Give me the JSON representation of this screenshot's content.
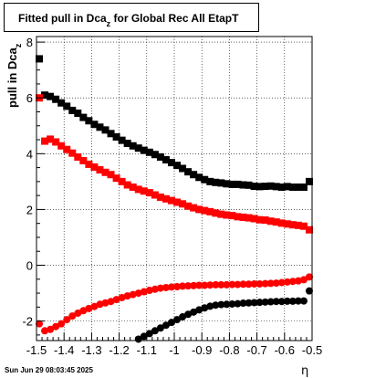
{
  "chart_data": {
    "type": "scatter",
    "title_pre": "Fitted pull in Dca",
    "title_sub": "z",
    "title_post": " for Global Rec All EtapT",
    "ylabel_pre": "pull in Dca",
    "ylabel_sub": "z",
    "xlabel": "η",
    "xlim": [
      -1.5,
      -0.5
    ],
    "ylim": [
      -2.7,
      8.2
    ],
    "grid": true,
    "x_ticks": [
      "-1.5",
      "-1.4",
      "-1.3",
      "-1.2",
      "-1.1",
      "-1",
      "-0.9",
      "-0.8",
      "-0.7",
      "-0.6",
      "-0.5"
    ],
    "y_ticks": [
      "-2",
      "0",
      "2",
      "4",
      "6",
      "8"
    ],
    "series": [
      {
        "marker": "square",
        "color": "#000000",
        "x": [
          -1.49,
          -1.47,
          -1.45,
          -1.43,
          -1.41,
          -1.39,
          -1.37,
          -1.35,
          -1.33,
          -1.31,
          -1.29,
          -1.27,
          -1.25,
          -1.23,
          -1.21,
          -1.19,
          -1.17,
          -1.15,
          -1.13,
          -1.11,
          -1.09,
          -1.07,
          -1.05,
          -1.03,
          -1.01,
          -0.99,
          -0.97,
          -0.95,
          -0.93,
          -0.91,
          -0.89,
          -0.87,
          -0.85,
          -0.83,
          -0.81,
          -0.79,
          -0.77,
          -0.75,
          -0.73,
          -0.71,
          -0.69,
          -0.67,
          -0.65,
          -0.63,
          -0.61,
          -0.59,
          -0.57,
          -0.55,
          -0.53,
          -0.51
        ],
        "y": [
          7.4,
          6.1,
          6.05,
          5.95,
          5.82,
          5.7,
          5.55,
          5.45,
          5.3,
          5.18,
          5.05,
          4.95,
          4.85,
          4.72,
          4.6,
          4.48,
          4.37,
          4.28,
          4.2,
          4.12,
          4.05,
          3.97,
          3.88,
          3.78,
          3.68,
          3.58,
          3.47,
          3.35,
          3.25,
          3.15,
          3.07,
          3.0,
          2.97,
          2.95,
          2.92,
          2.9,
          2.9,
          2.88,
          2.87,
          2.83,
          2.82,
          2.83,
          2.84,
          2.82,
          2.8,
          2.82,
          2.8,
          2.8,
          2.8,
          3.0
        ]
      },
      {
        "marker": "square",
        "color": "#ff0000",
        "x": [
          -1.49,
          -1.47,
          -1.45,
          -1.43,
          -1.41,
          -1.39,
          -1.37,
          -1.35,
          -1.33,
          -1.31,
          -1.29,
          -1.27,
          -1.25,
          -1.23,
          -1.21,
          -1.19,
          -1.17,
          -1.15,
          -1.13,
          -1.11,
          -1.09,
          -1.07,
          -1.05,
          -1.03,
          -1.01,
          -0.99,
          -0.97,
          -0.95,
          -0.93,
          -0.91,
          -0.89,
          -0.87,
          -0.85,
          -0.83,
          -0.81,
          -0.79,
          -0.77,
          -0.75,
          -0.73,
          -0.71,
          -0.69,
          -0.67,
          -0.65,
          -0.63,
          -0.61,
          -0.59,
          -0.57,
          -0.55,
          -0.53,
          -0.51
        ],
        "y": [
          6.0,
          4.45,
          4.52,
          4.42,
          4.28,
          4.15,
          4.02,
          3.88,
          3.75,
          3.62,
          3.52,
          3.42,
          3.33,
          3.25,
          3.12,
          3.0,
          2.88,
          2.8,
          2.72,
          2.66,
          2.6,
          2.52,
          2.44,
          2.38,
          2.32,
          2.26,
          2.2,
          2.12,
          2.06,
          2.0,
          1.96,
          1.92,
          1.87,
          1.83,
          1.8,
          1.78,
          1.74,
          1.72,
          1.7,
          1.67,
          1.63,
          1.62,
          1.58,
          1.55,
          1.51,
          1.48,
          1.45,
          1.43,
          1.4,
          1.27
        ]
      },
      {
        "marker": "circle",
        "color": "#ff0000",
        "x": [
          -1.49,
          -1.47,
          -1.45,
          -1.43,
          -1.41,
          -1.39,
          -1.37,
          -1.35,
          -1.33,
          -1.31,
          -1.29,
          -1.27,
          -1.25,
          -1.23,
          -1.21,
          -1.19,
          -1.17,
          -1.15,
          -1.13,
          -1.11,
          -1.09,
          -1.07,
          -1.05,
          -1.03,
          -1.01,
          -0.99,
          -0.97,
          -0.95,
          -0.93,
          -0.91,
          -0.89,
          -0.87,
          -0.85,
          -0.83,
          -0.81,
          -0.79,
          -0.77,
          -0.75,
          -0.73,
          -0.71,
          -0.69,
          -0.67,
          -0.65,
          -0.63,
          -0.61,
          -0.59,
          -0.57,
          -0.55,
          -0.53,
          -0.51
        ],
        "y": [
          -2.1,
          -2.35,
          -2.3,
          -2.2,
          -2.1,
          -1.95,
          -1.82,
          -1.72,
          -1.63,
          -1.55,
          -1.48,
          -1.4,
          -1.35,
          -1.3,
          -1.23,
          -1.16,
          -1.1,
          -1.05,
          -1.0,
          -0.95,
          -0.9,
          -0.86,
          -0.82,
          -0.8,
          -0.78,
          -0.77,
          -0.75,
          -0.74,
          -0.73,
          -0.72,
          -0.72,
          -0.71,
          -0.7,
          -0.7,
          -0.7,
          -0.69,
          -0.69,
          -0.68,
          -0.68,
          -0.67,
          -0.67,
          -0.66,
          -0.65,
          -0.64,
          -0.62,
          -0.6,
          -0.58,
          -0.56,
          -0.52,
          -0.42
        ]
      },
      {
        "marker": "circle",
        "color": "#000000",
        "x": [
          -1.13,
          -1.11,
          -1.09,
          -1.07,
          -1.05,
          -1.03,
          -1.01,
          -0.99,
          -0.97,
          -0.95,
          -0.93,
          -0.91,
          -0.89,
          -0.87,
          -0.85,
          -0.83,
          -0.81,
          -0.79,
          -0.77,
          -0.75,
          -0.73,
          -0.71,
          -0.69,
          -0.67,
          -0.65,
          -0.63,
          -0.61,
          -0.59,
          -0.57,
          -0.55,
          -0.53,
          -0.51
        ],
        "y": [
          -2.65,
          -2.55,
          -2.45,
          -2.35,
          -2.25,
          -2.15,
          -2.05,
          -1.95,
          -1.85,
          -1.76,
          -1.68,
          -1.6,
          -1.53,
          -1.47,
          -1.43,
          -1.41,
          -1.4,
          -1.39,
          -1.38,
          -1.36,
          -1.35,
          -1.34,
          -1.33,
          -1.32,
          -1.31,
          -1.3,
          -1.3,
          -1.29,
          -1.29,
          -1.28,
          -1.28,
          -0.92
        ]
      }
    ]
  },
  "date_stamp": "Sun Jun 29 08:03:45 2025"
}
